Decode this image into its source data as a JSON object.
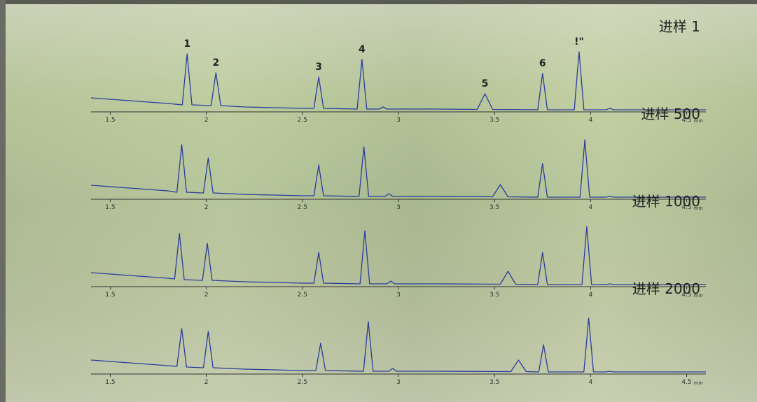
{
  "chart_data": [
    {
      "type": "line",
      "title": "进样 1",
      "xlabel": "min",
      "xlim": [
        1.4,
        4.6
      ],
      "ylim": [
        0,
        100
      ],
      "xticks": [
        1.5,
        2,
        2.5,
        3,
        3.5,
        4,
        4.5
      ],
      "x": [
        1.4,
        1.6,
        1.8,
        1.875,
        1.9,
        1.925,
        2.025,
        2.05,
        2.075,
        2.2,
        2.5,
        2.56,
        2.585,
        2.61,
        2.785,
        2.81,
        2.835,
        2.9,
        2.92,
        2.94,
        3.2,
        3.41,
        3.45,
        3.49,
        3.725,
        3.75,
        3.775,
        3.915,
        3.94,
        3.965,
        4.08,
        4.1,
        4.12,
        4.6
      ],
      "series": [
        {
          "color": "#2a3c9c",
          "values": [
            20,
            16,
            12,
            10,
            83,
            10,
            9,
            56,
            9,
            7,
            5,
            5,
            50,
            5,
            4,
            75,
            4,
            4,
            7,
            4,
            4,
            3.5,
            26,
            3.5,
            3,
            55,
            3,
            3,
            86,
            3,
            3,
            5,
            3,
            3
          ]
        }
      ],
      "annotations": [
        {
          "text": "1",
          "x": 1.9,
          "y": 83
        },
        {
          "text": "2",
          "x": 2.05,
          "y": 56
        },
        {
          "text": "3",
          "x": 2.585,
          "y": 50
        },
        {
          "text": "4",
          "x": 2.81,
          "y": 75
        },
        {
          "text": "5",
          "x": 3.45,
          "y": 26
        },
        {
          "text": "6",
          "x": 3.75,
          "y": 55
        },
        {
          "text": "!\"",
          "x": 3.94,
          "y": 86
        }
      ]
    },
    {
      "type": "line",
      "title": "进样 500",
      "xlabel": "min",
      "xlim": [
        1.4,
        4.6
      ],
      "ylim": [
        0,
        100
      ],
      "xticks": [
        1.5,
        2,
        2.5,
        3,
        3.5,
        4,
        4.5
      ],
      "x": [
        1.4,
        1.6,
        1.8,
        1.847,
        1.872,
        1.897,
        1.985,
        2.01,
        2.035,
        2.2,
        2.5,
        2.56,
        2.585,
        2.61,
        2.795,
        2.82,
        2.845,
        2.93,
        2.95,
        2.97,
        3.2,
        3.49,
        3.53,
        3.57,
        3.725,
        3.75,
        3.775,
        3.945,
        3.97,
        3.995,
        4.08,
        4.1,
        4.12,
        4.6
      ],
      "series": [
        {
          "color": "#2a3c9c",
          "values": [
            20,
            16,
            12,
            10,
            78,
            10,
            9,
            59,
            9,
            7,
            5,
            5,
            49,
            5,
            4,
            75,
            4,
            4,
            8,
            4,
            4,
            3.5,
            21,
            3.5,
            3,
            51,
            3,
            3,
            85,
            3,
            3,
            4,
            3,
            3
          ]
        }
      ]
    },
    {
      "type": "line",
      "title": "进样 1000",
      "xlabel": "min",
      "xlim": [
        1.4,
        4.6
      ],
      "ylim": [
        0,
        100
      ],
      "xticks": [
        1.5,
        2,
        2.5,
        3,
        3.5,
        4,
        4.5
      ],
      "x": [
        1.4,
        1.6,
        1.8,
        1.835,
        1.86,
        1.885,
        1.98,
        2.005,
        2.03,
        2.2,
        2.5,
        2.56,
        2.585,
        2.61,
        2.8,
        2.825,
        2.85,
        2.94,
        2.96,
        2.98,
        3.2,
        3.53,
        3.57,
        3.61,
        3.725,
        3.75,
        3.775,
        3.955,
        3.98,
        4.005,
        4.08,
        4.1,
        4.12,
        4.6
      ],
      "series": [
        {
          "color": "#2a3c9c",
          "values": [
            20,
            16,
            12,
            11,
            76,
            10,
            9,
            62,
            9,
            7,
            5,
            5,
            49,
            5,
            4,
            80,
            4,
            4,
            8,
            4,
            4,
            3.5,
            22,
            3.5,
            3,
            49,
            3,
            3,
            86,
            3,
            3,
            4,
            3,
            3
          ]
        }
      ]
    },
    {
      "type": "line",
      "title": "进样 2000",
      "xlabel": "min",
      "xlim": [
        1.4,
        4.6
      ],
      "ylim": [
        0,
        100
      ],
      "xticks": [
        1.5,
        2,
        2.5,
        3,
        3.5,
        4,
        4.5
      ],
      "x": [
        1.4,
        1.6,
        1.8,
        1.847,
        1.872,
        1.897,
        1.985,
        2.01,
        2.035,
        2.2,
        2.5,
        2.57,
        2.595,
        2.62,
        2.818,
        2.843,
        2.868,
        2.95,
        2.97,
        2.99,
        3.2,
        3.585,
        3.625,
        3.665,
        3.73,
        3.755,
        3.78,
        3.965,
        3.99,
        4.015,
        4.08,
        4.1,
        4.12,
        4.6
      ],
      "series": [
        {
          "color": "#2a3c9c",
          "values": [
            20,
            16,
            12,
            11,
            65,
            10,
            9,
            61,
            9,
            7,
            5,
            5,
            44,
            5,
            4,
            75,
            4,
            4,
            8,
            4,
            4,
            3.5,
            20,
            3.5,
            3,
            42,
            3,
            3,
            80,
            3,
            3,
            4,
            3,
            3
          ]
        }
      ]
    }
  ]
}
